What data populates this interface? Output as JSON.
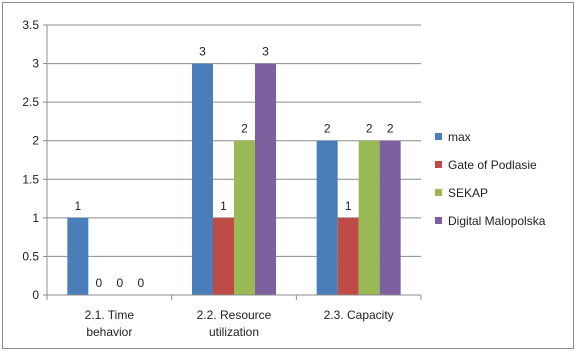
{
  "chart_data": {
    "type": "bar",
    "categories": [
      [
        "2.1. Time",
        "behavior"
      ],
      [
        "2.2. Resource",
        "utilization"
      ],
      [
        "2.3. Capacity"
      ]
    ],
    "series": [
      {
        "name": "max",
        "values": [
          1,
          3,
          2
        ],
        "color": "#4a7ebb"
      },
      {
        "name": "Gate of Podlasie",
        "values": [
          0,
          1,
          1
        ],
        "color": "#be4b48"
      },
      {
        "name": "SEKAP",
        "values": [
          0,
          2,
          2
        ],
        "color": "#98b954"
      },
      {
        "name": "Digital Malopolska",
        "values": [
          0,
          3,
          2
        ],
        "color": "#7d60a0"
      }
    ],
    "ylim": [
      0,
      3.5
    ],
    "yticks": [
      "0",
      "0.5",
      "1",
      "1.5",
      "2",
      "2.5",
      "3",
      "3.5"
    ],
    "ytick_values": [
      0,
      0.5,
      1,
      1.5,
      2,
      2.5,
      3,
      3.5
    ],
    "data_labels": true,
    "grid": "horizontal",
    "legend": "right",
    "title": "",
    "xlabel": "",
    "ylabel": ""
  }
}
